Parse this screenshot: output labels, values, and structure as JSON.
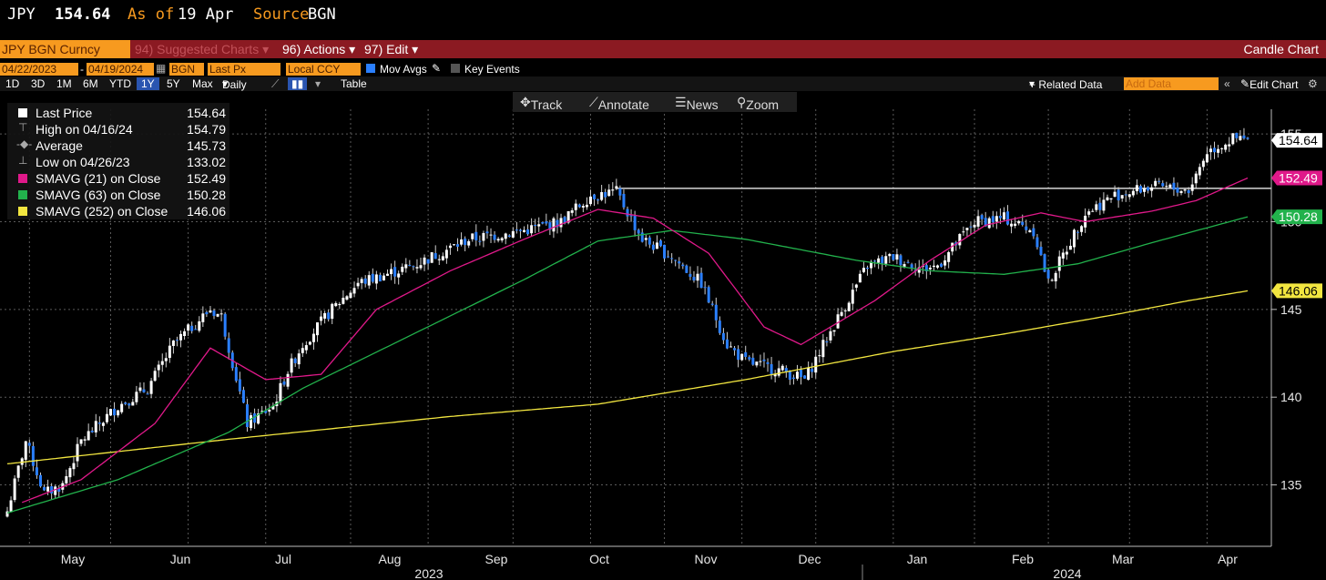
{
  "header": {
    "ticker": "JPY",
    "price": "154.64",
    "asof_label": "As of",
    "asof_date": "19 Apr",
    "source_label": "Source",
    "source": "BGN"
  },
  "menu": {
    "security": "JPY BGN Curncy",
    "suggested": "94) Suggested Charts",
    "actions": "96) Actions",
    "edit": "97) Edit",
    "chart_type": "Candle Chart"
  },
  "params": {
    "start": "04/22/2023",
    "end": "04/19/2024",
    "source": "BGN",
    "field": "Last Px",
    "currency": "Local CCY",
    "mov_avgs": "Mov Avgs",
    "key_events": "Key Events"
  },
  "periods": [
    "1D",
    "3D",
    "1M",
    "6M",
    "YTD",
    "1Y",
    "5Y",
    "Max"
  ],
  "periodicity": "Daily",
  "table_label": "Table",
  "right_tools": {
    "related": "+ Related Data",
    "add_data": "Add Data",
    "edit_chart": "Edit Chart"
  },
  "tools": {
    "track": "Track",
    "annotate": "Annotate",
    "news": "News",
    "zoom": "Zoom"
  },
  "legend": [
    {
      "name": "Last Price",
      "value": "154.64",
      "color": "#ffffff"
    },
    {
      "name": "High on 04/16/24",
      "value": "154.79",
      "color": "#aaaaaa"
    },
    {
      "name": "Average",
      "value": "145.73",
      "color": "#aaaaaa"
    },
    {
      "name": "Low on 04/26/23",
      "value": "133.02",
      "color": "#aaaaaa"
    },
    {
      "name": "SMAVG (21)  on Close",
      "value": "152.49",
      "color": "#e0198a"
    },
    {
      "name": "SMAVG (63)  on Close",
      "value": "150.28",
      "color": "#22b24c"
    },
    {
      "name": "SMAVG (252)  on Close",
      "value": "146.06",
      "color": "#f2e640"
    }
  ],
  "chart_data": {
    "type": "candlestick",
    "ylim": [
      131.5,
      156.2
    ],
    "yticks": [
      135,
      140,
      145,
      150,
      155
    ],
    "xlabels": [
      "May",
      "Jun",
      "Jul",
      "Aug",
      "Sep",
      "Oct",
      "Nov",
      "Dec",
      "Jan",
      "Feb",
      "Mar",
      "Apr"
    ],
    "years": [
      "2023",
      "2024"
    ],
    "resistance_level": 151.9,
    "close_anchors": [
      [
        0,
        133.5
      ],
      [
        5,
        137.5
      ],
      [
        10,
        134.5
      ],
      [
        15,
        135.0
      ],
      [
        20,
        137.5
      ],
      [
        30,
        139.5
      ],
      [
        38,
        140.5
      ],
      [
        45,
        143.0
      ],
      [
        55,
        145.0
      ],
      [
        58,
        144.6
      ],
      [
        65,
        138.5
      ],
      [
        72,
        139.5
      ],
      [
        76,
        141.5
      ],
      [
        80,
        143.0
      ],
      [
        88,
        145.0
      ],
      [
        95,
        146.5
      ],
      [
        110,
        147.5
      ],
      [
        125,
        149.0
      ],
      [
        140,
        149.5
      ],
      [
        150,
        150.0
      ],
      [
        158,
        151.5
      ],
      [
        165,
        151.7
      ],
      [
        172,
        149.0
      ],
      [
        180,
        148.0
      ],
      [
        188,
        146.5
      ],
      [
        195,
        143.0
      ],
      [
        200,
        142.0
      ],
      [
        210,
        141.5
      ],
      [
        216,
        141.0
      ],
      [
        225,
        144.5
      ],
      [
        233,
        147.5
      ],
      [
        240,
        148.0
      ],
      [
        248,
        147.3
      ],
      [
        252,
        147.5
      ],
      [
        262,
        150.0
      ],
      [
        270,
        150.2
      ],
      [
        278,
        149.5
      ],
      [
        282,
        146.5
      ],
      [
        292,
        150.5
      ],
      [
        300,
        151.5
      ],
      [
        310,
        152.0
      ],
      [
        320,
        151.8
      ],
      [
        325,
        154.0
      ],
      [
        332,
        154.7
      ],
      [
        336,
        154.64
      ]
    ],
    "sma21": [
      [
        4,
        134.0
      ],
      [
        20,
        135.3
      ],
      [
        40,
        138.5
      ],
      [
        55,
        142.8
      ],
      [
        70,
        141.0
      ],
      [
        85,
        141.3
      ],
      [
        100,
        145.0
      ],
      [
        120,
        147.2
      ],
      [
        140,
        149.0
      ],
      [
        160,
        150.7
      ],
      [
        175,
        150.2
      ],
      [
        190,
        148.2
      ],
      [
        205,
        144.0
      ],
      [
        215,
        143.0
      ],
      [
        235,
        145.5
      ],
      [
        250,
        147.8
      ],
      [
        265,
        149.8
      ],
      [
        280,
        150.5
      ],
      [
        292,
        150.0
      ],
      [
        310,
        150.6
      ],
      [
        322,
        151.2
      ],
      [
        336,
        152.49
      ]
    ],
    "sma63": [
      [
        0,
        133.4
      ],
      [
        30,
        135.3
      ],
      [
        60,
        138.0
      ],
      [
        80,
        140.5
      ],
      [
        110,
        143.6
      ],
      [
        140,
        146.7
      ],
      [
        160,
        148.9
      ],
      [
        180,
        149.5
      ],
      [
        200,
        149.0
      ],
      [
        230,
        147.8
      ],
      [
        250,
        147.2
      ],
      [
        270,
        147.0
      ],
      [
        290,
        147.6
      ],
      [
        310,
        148.8
      ],
      [
        336,
        150.28
      ]
    ],
    "sma252": [
      [
        0,
        136.2
      ],
      [
        60,
        137.6
      ],
      [
        120,
        138.9
      ],
      [
        160,
        139.6
      ],
      [
        200,
        141.0
      ],
      [
        240,
        142.6
      ],
      [
        270,
        143.6
      ],
      [
        300,
        144.7
      ],
      [
        320,
        145.5
      ],
      [
        336,
        146.06
      ]
    ],
    "month_starts": [
      6,
      28,
      49,
      70,
      93,
      114,
      137,
      158,
      178,
      199,
      219,
      240,
      262,
      282,
      304,
      325
    ]
  },
  "labels": {
    "last": "154.64",
    "sma21": "152.49",
    "sma63": "150.28",
    "sma252": "146.06"
  },
  "colors": {
    "up": "#ffffff",
    "down": "#2a7fff",
    "sma21": "#e0198a",
    "sma63": "#22b24c",
    "sma252": "#f2e640",
    "orange": "#f79a1f",
    "menu_red": "#8b1a22"
  }
}
